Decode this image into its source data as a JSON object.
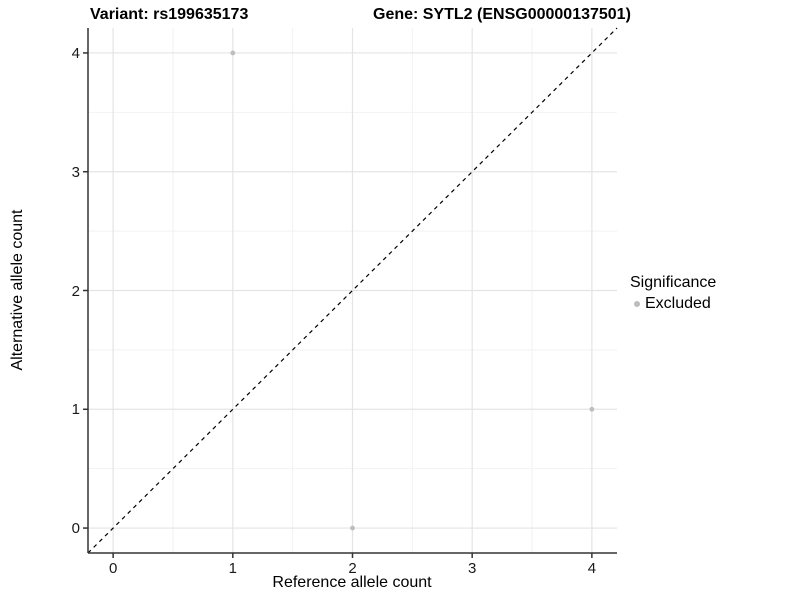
{
  "chart_data": {
    "type": "scatter",
    "title_variant": "Variant: rs199635173",
    "title_gene": "Gene: SYTL2 (ENSG00000137501)",
    "xlabel": "Reference allele count",
    "ylabel": "Alternative allele count",
    "xlim": [
      -0.21,
      4.21
    ],
    "ylim": [
      -0.21,
      4.21
    ],
    "xticks": [
      0,
      1,
      2,
      3,
      4
    ],
    "yticks": [
      0,
      1,
      2,
      3,
      4
    ],
    "grid": {
      "major": true,
      "minor": true,
      "minor_ticks": [
        0.5,
        1.5,
        2.5,
        3.5
      ]
    },
    "series": [
      {
        "name": "Excluded",
        "color": "#bdbdbd",
        "points": [
          {
            "x": 1,
            "y": 4
          },
          {
            "x": 2,
            "y": 0
          },
          {
            "x": 4,
            "y": 1
          }
        ]
      }
    ],
    "reference_line": {
      "type": "identity",
      "style": "dashed",
      "color": "#000000",
      "from": -0.21,
      "to": 4.21
    },
    "legend": {
      "title": "Significance",
      "position": "right",
      "items": [
        {
          "label": "Excluded",
          "color": "#bdbdbd"
        }
      ]
    }
  },
  "colors": {
    "background": "#ffffff",
    "grid_major": "#e4e4e4",
    "grid_minor": "#f2f2f2",
    "axis": "#333333",
    "tick_text": "#1a1a1a",
    "point": "#bdbdbd"
  }
}
